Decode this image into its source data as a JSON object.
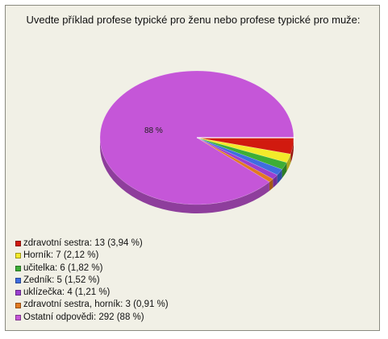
{
  "chart_data": {
    "type": "pie",
    "title": "Uvedte příklad profese typické pro ženu nebo profese typické pro muže:",
    "slice_label": "88 %",
    "slices": [
      {
        "label": "zdravotní sestra: 13 (3,94 %)",
        "value": 13,
        "percent": 3.94,
        "color": "#d11a0f"
      },
      {
        "label": "Horník: 7 (2,12 %)",
        "value": 7,
        "percent": 2.12,
        "color": "#f3ea2a"
      },
      {
        "label": "učitelka: 6 (1,82 %)",
        "value": 6,
        "percent": 1.82,
        "color": "#3dae36"
      },
      {
        "label": "Zedník: 5 (1,52 %)",
        "value": 5,
        "percent": 1.52,
        "color": "#3f6de0"
      },
      {
        "label": "uklízečka: 4 (1,21 %)",
        "value": 4,
        "percent": 1.21,
        "color": "#9b3fd0"
      },
      {
        "label": "zdravotní sestra, horník: 3 (0,91 %)",
        "value": 3,
        "percent": 0.91,
        "color": "#e27a21"
      },
      {
        "label": "Ostatní odpovědi: 292 (88 %)",
        "value": 292,
        "percent": 88,
        "color": "#c556d8"
      }
    ],
    "legend_position": "bottom-left"
  }
}
